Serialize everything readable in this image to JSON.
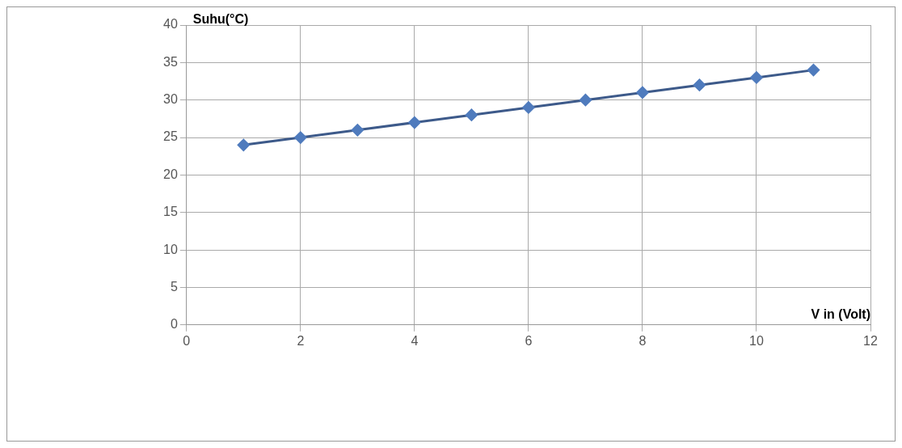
{
  "chart_data": {
    "type": "line",
    "xlabel": "V in (Volt)",
    "ylabel": "Suhu(°C)",
    "x": [
      1,
      2,
      3,
      4,
      5,
      6,
      7,
      8,
      9,
      10,
      11
    ],
    "series": [
      {
        "color": "#3d5a8a",
        "values": [
          24,
          25,
          26,
          27,
          28,
          29,
          30,
          31,
          32,
          33,
          34
        ]
      }
    ],
    "xlim": [
      0,
      12
    ],
    "xticks": [
      0,
      2,
      4,
      6,
      8,
      10,
      12
    ],
    "ylim": [
      0,
      40
    ],
    "yticks": [
      0,
      5,
      10,
      15,
      20,
      25,
      30,
      35,
      40
    ],
    "grid": true,
    "marker": "diamond",
    "line_style": "solid",
    "legend": false
  }
}
